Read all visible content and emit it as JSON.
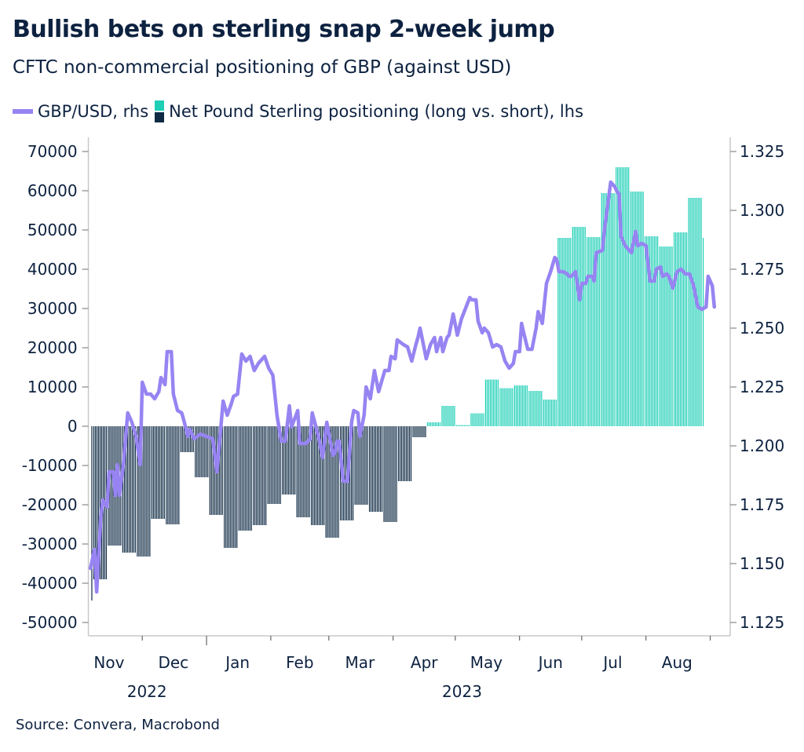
{
  "title": "Bullish bets on sterling snap 2-week jump",
  "subtitle": "CFTC non-commercial positioning of GBP (against USD)",
  "source": "Source: Convera, Macrobond",
  "colors": {
    "line": "#9784f2",
    "positive_bar": "#1ecfb6",
    "negative_bar": "#0e2a44",
    "text": "#0d2240",
    "axis": "#c8c8c8"
  },
  "chart_data": {
    "type": "bar+line",
    "legend": "top",
    "grid": false,
    "x_range": [
      "2022-11-05",
      "2023-09-05"
    ],
    "x_ticks": [
      {
        "label": "Nov",
        "date": "2022-11-15"
      },
      {
        "label": "Dec",
        "date": "2022-12-16"
      },
      {
        "label": "Jan",
        "date": "2023-01-16"
      },
      {
        "label": "Feb",
        "date": "2023-02-15"
      },
      {
        "label": "Mar",
        "date": "2023-03-16"
      },
      {
        "label": "Apr",
        "date": "2023-04-16"
      },
      {
        "label": "May",
        "date": "2023-05-16"
      },
      {
        "label": "Jun",
        "date": "2023-06-16"
      },
      {
        "label": "Jul",
        "date": "2023-07-16"
      },
      {
        "label": "Aug",
        "date": "2023-08-16"
      }
    ],
    "month_boundaries": [
      "2022-12-01",
      "2023-01-01",
      "2023-02-01",
      "2023-03-01",
      "2023-04-01",
      "2023-05-01",
      "2023-06-01",
      "2023-07-01",
      "2023-08-01",
      "2023-09-01"
    ],
    "years": [
      {
        "label": "2022",
        "date": "2022-12-01"
      },
      {
        "label": "2023",
        "date": "2023-05-02"
      }
    ],
    "y_left": {
      "range": [
        -50000,
        70000
      ],
      "ticks": [
        "70000",
        "60000",
        "50000",
        "40000",
        "30000",
        "20000",
        "10000",
        "0",
        "-10000",
        "-20000",
        "-30000",
        "-40000",
        "-50000"
      ]
    },
    "y_right": {
      "range": [
        1.125,
        1.325
      ],
      "ticks": [
        "1.325",
        "1.300",
        "1.275",
        "1.250",
        "1.225",
        "1.200",
        "1.175",
        "1.150",
        "1.125"
      ]
    },
    "series": [
      {
        "name": "GBP/USD, rhs",
        "type": "line",
        "axis": "right",
        "points": [
          [
            "2022-11-06",
            1.148
          ],
          [
            "2022-11-08",
            1.156
          ],
          [
            "2022-11-09",
            1.138
          ],
          [
            "2022-11-11",
            1.17
          ],
          [
            "2022-11-12",
            1.177
          ],
          [
            "2022-11-14",
            1.174
          ],
          [
            "2022-11-15",
            1.189
          ],
          [
            "2022-11-17",
            1.189
          ],
          [
            "2022-11-18",
            1.179
          ],
          [
            "2022-11-19",
            1.192
          ],
          [
            "2022-11-20",
            1.179
          ],
          [
            "2022-11-22",
            1.193
          ],
          [
            "2022-11-24",
            1.214
          ],
          [
            "2022-11-26",
            1.21
          ],
          [
            "2022-11-28",
            1.204
          ],
          [
            "2022-11-30",
            1.192
          ],
          [
            "2022-12-01",
            1.227
          ],
          [
            "2022-12-03",
            1.222
          ],
          [
            "2022-12-05",
            1.222
          ],
          [
            "2022-12-07",
            1.22
          ],
          [
            "2022-12-09",
            1.223
          ],
          [
            "2022-12-10",
            1.229
          ],
          [
            "2022-12-12",
            1.226
          ],
          [
            "2022-12-13",
            1.24
          ],
          [
            "2022-12-15",
            1.24
          ],
          [
            "2022-12-16",
            1.222
          ],
          [
            "2022-12-18",
            1.215
          ],
          [
            "2022-12-20",
            1.214
          ],
          [
            "2022-12-21",
            1.211
          ],
          [
            "2022-12-23",
            1.204
          ],
          [
            "2022-12-24",
            1.207
          ],
          [
            "2022-12-26",
            1.203
          ],
          [
            "2022-12-29",
            1.205
          ],
          [
            "2023-01-01",
            1.204
          ],
          [
            "2023-01-04",
            1.203
          ],
          [
            "2023-01-06",
            1.189
          ],
          [
            "2023-01-09",
            1.219
          ],
          [
            "2023-01-11",
            1.213
          ],
          [
            "2023-01-13",
            1.218
          ],
          [
            "2023-01-14",
            1.221
          ],
          [
            "2023-01-16",
            1.222
          ],
          [
            "2023-01-18",
            1.239
          ],
          [
            "2023-01-20",
            1.236
          ],
          [
            "2023-01-22",
            1.238
          ],
          [
            "2023-01-24",
            1.232
          ],
          [
            "2023-01-26",
            1.235
          ],
          [
            "2023-01-29",
            1.238
          ],
          [
            "2023-01-31",
            1.233
          ],
          [
            "2023-02-02",
            1.23
          ],
          [
            "2023-02-04",
            1.213
          ],
          [
            "2023-02-06",
            1.202
          ],
          [
            "2023-02-08",
            1.202
          ],
          [
            "2023-02-10",
            1.217
          ],
          [
            "2023-02-11",
            1.208
          ],
          [
            "2023-02-14",
            1.215
          ],
          [
            "2023-02-15",
            1.201
          ],
          [
            "2023-02-18",
            1.201
          ],
          [
            "2023-02-20",
            1.203
          ],
          [
            "2023-02-21",
            1.214
          ],
          [
            "2023-02-24",
            1.204
          ],
          [
            "2023-02-26",
            1.195
          ],
          [
            "2023-02-28",
            1.21
          ],
          [
            "2023-03-03",
            1.196
          ],
          [
            "2023-03-04",
            1.197
          ],
          [
            "2023-03-05",
            1.202
          ],
          [
            "2023-03-06",
            1.202
          ],
          [
            "2023-03-08",
            1.185
          ],
          [
            "2023-03-10",
            1.185
          ],
          [
            "2023-03-12",
            1.21
          ],
          [
            "2023-03-13",
            1.215
          ],
          [
            "2023-03-15",
            1.214
          ],
          [
            "2023-03-16",
            1.204
          ],
          [
            "2023-03-18",
            1.213
          ],
          [
            "2023-03-19",
            1.225
          ],
          [
            "2023-03-21",
            1.22
          ],
          [
            "2023-03-23",
            1.232
          ],
          [
            "2023-03-25",
            1.223
          ],
          [
            "2023-03-28",
            1.232
          ],
          [
            "2023-03-30",
            1.232
          ],
          [
            "2023-03-31",
            1.238
          ],
          [
            "2023-04-02",
            1.237
          ],
          [
            "2023-04-03",
            1.245
          ],
          [
            "2023-04-06",
            1.243
          ],
          [
            "2023-04-08",
            1.242
          ],
          [
            "2023-04-10",
            1.236
          ],
          [
            "2023-04-12",
            1.243
          ],
          [
            "2023-04-13",
            1.246
          ],
          [
            "2023-04-14",
            1.25
          ],
          [
            "2023-04-17",
            1.237
          ],
          [
            "2023-04-19",
            1.243
          ],
          [
            "2023-04-21",
            1.246
          ],
          [
            "2023-04-22",
            1.24
          ],
          [
            "2023-04-24",
            1.246
          ],
          [
            "2023-04-25",
            1.24
          ],
          [
            "2023-04-27",
            1.246
          ],
          [
            "2023-04-28",
            1.247
          ],
          [
            "2023-04-30",
            1.256
          ],
          [
            "2023-05-02",
            1.247
          ],
          [
            "2023-05-04",
            1.254
          ],
          [
            "2023-05-08",
            1.263
          ],
          [
            "2023-05-09",
            1.262
          ],
          [
            "2023-05-11",
            1.262
          ],
          [
            "2023-05-12",
            1.253
          ],
          [
            "2023-05-14",
            1.248
          ],
          [
            "2023-05-15",
            1.25
          ],
          [
            "2023-05-17",
            1.248
          ],
          [
            "2023-05-19",
            1.242
          ],
          [
            "2023-05-21",
            1.243
          ],
          [
            "2023-05-23",
            1.242
          ],
          [
            "2023-05-25",
            1.236
          ],
          [
            "2023-05-27",
            1.233
          ],
          [
            "2023-05-29",
            1.235
          ],
          [
            "2023-05-30",
            1.24
          ],
          [
            "2023-06-01",
            1.24
          ],
          [
            "2023-06-02",
            1.252
          ],
          [
            "2023-06-03",
            1.248
          ],
          [
            "2023-06-05",
            1.241
          ],
          [
            "2023-06-07",
            1.241
          ],
          [
            "2023-06-09",
            1.25
          ],
          [
            "2023-06-10",
            1.257
          ],
          [
            "2023-06-12",
            1.252
          ],
          [
            "2023-06-14",
            1.269
          ],
          [
            "2023-06-16",
            1.274
          ],
          [
            "2023-06-18",
            1.28
          ],
          [
            "2023-06-19",
            1.279
          ],
          [
            "2023-06-20",
            1.274
          ],
          [
            "2023-06-22",
            1.274
          ],
          [
            "2023-06-24",
            1.273
          ],
          [
            "2023-06-25",
            1.272
          ],
          [
            "2023-06-26",
            1.272
          ],
          [
            "2023-06-28",
            1.274
          ],
          [
            "2023-06-30",
            1.262
          ],
          [
            "2023-07-01",
            1.269
          ],
          [
            "2023-07-03",
            1.269
          ],
          [
            "2023-07-04",
            1.272
          ],
          [
            "2023-07-06",
            1.272
          ],
          [
            "2023-07-07",
            1.27
          ],
          [
            "2023-07-08",
            1.282
          ],
          [
            "2023-07-11",
            1.283
          ],
          [
            "2023-07-12",
            1.292
          ],
          [
            "2023-07-15",
            1.312
          ],
          [
            "2023-07-17",
            1.31
          ],
          [
            "2023-07-18",
            1.308
          ],
          [
            "2023-07-19",
            1.307
          ],
          [
            "2023-07-20",
            1.289
          ],
          [
            "2023-07-22",
            1.285
          ],
          [
            "2023-07-25",
            1.282
          ],
          [
            "2023-07-27",
            1.291
          ],
          [
            "2023-07-28",
            1.285
          ],
          [
            "2023-07-30",
            1.286
          ],
          [
            "2023-08-01",
            1.285
          ],
          [
            "2023-08-03",
            1.27
          ],
          [
            "2023-08-05",
            1.27
          ],
          [
            "2023-08-06",
            1.275
          ],
          [
            "2023-08-08",
            1.276
          ],
          [
            "2023-08-09",
            1.272
          ],
          [
            "2023-08-11",
            1.273
          ],
          [
            "2023-08-12",
            1.272
          ],
          [
            "2023-08-14",
            1.267
          ],
          [
            "2023-08-16",
            1.274
          ],
          [
            "2023-08-18",
            1.275
          ],
          [
            "2023-08-20",
            1.273
          ],
          [
            "2023-08-22",
            1.273
          ],
          [
            "2023-08-24",
            1.268
          ],
          [
            "2023-08-26",
            1.259
          ],
          [
            "2023-08-28",
            1.258
          ],
          [
            "2023-08-30",
            1.259
          ],
          [
            "2023-08-31",
            1.272
          ],
          [
            "2023-09-02",
            1.268
          ],
          [
            "2023-09-03",
            1.259
          ]
        ]
      },
      {
        "name": "Net Pound Sterling positioning (long vs. short), lhs",
        "type": "bar",
        "axis": "left",
        "bars_end": "2023-08-29",
        "weeks": [
          [
            "2022-10-31",
            -44400
          ],
          [
            "2022-11-07",
            -39000
          ],
          [
            "2022-11-14",
            -30400
          ],
          [
            "2022-11-21",
            -32200
          ],
          [
            "2022-11-28",
            -33200
          ],
          [
            "2022-12-05",
            -23600
          ],
          [
            "2022-12-12",
            -25000
          ],
          [
            "2022-12-19",
            -6600
          ],
          [
            "2022-12-26",
            -13000
          ],
          [
            "2023-01-02",
            -22600
          ],
          [
            "2023-01-09",
            -31000
          ],
          [
            "2023-01-16",
            -26600
          ],
          [
            "2023-01-23",
            -25200
          ],
          [
            "2023-01-30",
            -19800
          ],
          [
            "2023-02-06",
            -17400
          ],
          [
            "2023-02-13",
            -23200
          ],
          [
            "2023-02-20",
            -25200
          ],
          [
            "2023-02-27",
            -28400
          ],
          [
            "2023-03-06",
            -24000
          ],
          [
            "2023-03-13",
            -20000
          ],
          [
            "2023-03-20",
            -21800
          ],
          [
            "2023-03-27",
            -24400
          ],
          [
            "2023-04-03",
            -14000
          ],
          [
            "2023-04-10",
            -2800
          ],
          [
            "2023-04-17",
            1000
          ],
          [
            "2023-04-24",
            5200
          ],
          [
            "2023-05-01",
            300
          ],
          [
            "2023-05-08",
            3300
          ],
          [
            "2023-05-15",
            11900
          ],
          [
            "2023-05-22",
            9700
          ],
          [
            "2023-05-29",
            10400
          ],
          [
            "2023-06-05",
            9000
          ],
          [
            "2023-06-12",
            6800
          ],
          [
            "2023-06-19",
            48000
          ],
          [
            "2023-06-26",
            50800
          ],
          [
            "2023-07-03",
            48200
          ],
          [
            "2023-07-10",
            59400
          ],
          [
            "2023-07-17",
            66000
          ],
          [
            "2023-07-24",
            59800
          ],
          [
            "2023-07-31",
            48400
          ],
          [
            "2023-08-07",
            45800
          ],
          [
            "2023-08-14",
            49400
          ],
          [
            "2023-08-21",
            58200
          ],
          [
            "2023-08-28",
            48000
          ]
        ]
      }
    ]
  }
}
